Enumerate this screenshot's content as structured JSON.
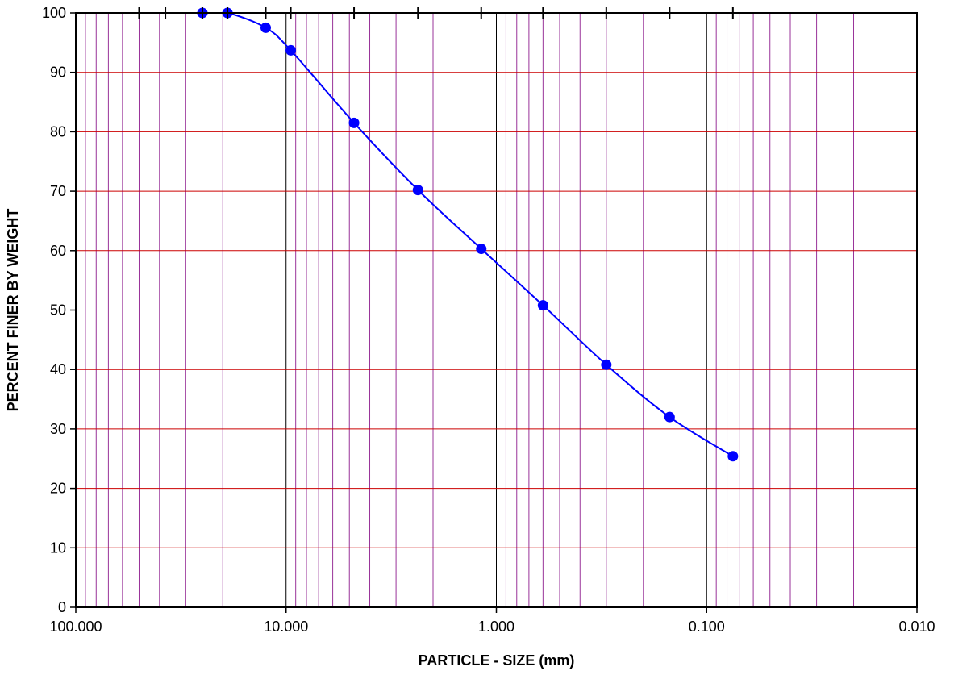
{
  "chart_data": {
    "type": "line",
    "title": "",
    "xlabel": "PARTICLE - SIZE (mm)",
    "ylabel": "PERCENT FINER BY WEIGHT",
    "x_scale": "log",
    "x_reversed": true,
    "xlim": [
      100,
      0.01
    ],
    "ylim": [
      0,
      100
    ],
    "x_tick_labels": [
      "100.000",
      "10.000",
      "1.000",
      "0.100",
      "0.010"
    ],
    "x_tick_values": [
      100,
      10,
      1,
      0.1,
      0.01
    ],
    "y_ticks": [
      0,
      10,
      20,
      30,
      40,
      50,
      60,
      70,
      80,
      90,
      100
    ],
    "y_grid": true,
    "x_grid": true,
    "series": [
      {
        "x": [
          100,
          25,
          19,
          12.5,
          9.5,
          4.75,
          2.36,
          1.18,
          0.6,
          0.3,
          0.15,
          0.075
        ],
        "y": [
          100,
          100,
          100,
          97.5,
          93.7,
          81.5,
          70.2,
          60.3,
          50.8,
          40.8,
          32.0,
          25.4
        ],
        "markers": [
          false,
          true,
          true,
          true,
          true,
          true,
          true,
          true,
          true,
          true,
          true,
          true
        ]
      }
    ],
    "sieve_marks": [
      50,
      37.5,
      25,
      19,
      12.5,
      9.5,
      4.75,
      2.36,
      1.18,
      0.6,
      0.3,
      0.15,
      0.075
    ],
    "colors": {
      "series": "#0000ff",
      "major_vertical_grid": "#000000",
      "minor_vertical_grid": "#993399",
      "horizontal_grid": "#cc0000",
      "frame": "#000000"
    }
  }
}
